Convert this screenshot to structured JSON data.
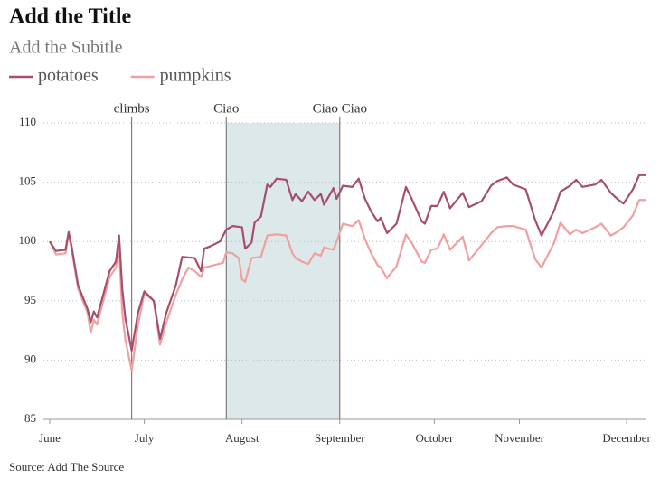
{
  "chart_data": {
    "type": "line",
    "title": "Add the Title",
    "subtitle": "Add the Subitle",
    "source": "Source: Add The Source",
    "xlim": [
      0,
      189
    ],
    "xticks": [
      {
        "value": 0,
        "label": "June"
      },
      {
        "value": 30,
        "label": "July"
      },
      {
        "value": 61,
        "label": "August"
      },
      {
        "value": 92,
        "label": "September"
      },
      {
        "value": 122,
        "label": "October"
      },
      {
        "value": 149,
        "label": "November"
      },
      {
        "value": 183,
        "label": "December"
      }
    ],
    "ylim": [
      85,
      110
    ],
    "yticks": [
      85,
      90,
      95,
      100,
      105,
      110
    ],
    "grid": true,
    "highlight": [
      56,
      92
    ],
    "annotations": [
      {
        "label": "climbs",
        "x": 26
      },
      {
        "label": "Ciao",
        "x": 56
      },
      {
        "label": "Ciao Ciao",
        "x": 92
      }
    ],
    "series": [
      {
        "name": "potatoes",
        "color": "#a4506d",
        "x": [
          0,
          2,
          5,
          6,
          7,
          9,
          12,
          13,
          14,
          15,
          19,
          21,
          22,
          23,
          24,
          26,
          28,
          30,
          33,
          35,
          37,
          40,
          42,
          46,
          48,
          49,
          51,
          54,
          56,
          58,
          61,
          62,
          64,
          65,
          67,
          69,
          70,
          72,
          75,
          77,
          78,
          80,
          82,
          84,
          86,
          87,
          90,
          91,
          93,
          96,
          98,
          100,
          102,
          104,
          105,
          107,
          110,
          113,
          115,
          118,
          119,
          121,
          123,
          125,
          127,
          131,
          133,
          137,
          140,
          142,
          145,
          147,
          151,
          154,
          156,
          160,
          162,
          165,
          167,
          169,
          173,
          175,
          178,
          180,
          182,
          185,
          187,
          189
        ],
        "values": [
          100,
          99.2,
          99.3,
          100.8,
          99.5,
          96.3,
          94.3,
          93.2,
          94.1,
          93.6,
          97.5,
          98.3,
          100.5,
          96,
          93.5,
          90.8,
          94,
          95.8,
          95,
          91.8,
          94,
          96.3,
          98.7,
          98.6,
          97.5,
          99.4,
          99.6,
          100,
          101,
          101.3,
          101.2,
          99.4,
          99.9,
          101.6,
          102.1,
          104.8,
          104.6,
          105.3,
          105.2,
          103.5,
          104,
          103.4,
          104.2,
          103.5,
          104,
          103.1,
          104.5,
          103.6,
          104.7,
          104.6,
          105.3,
          103.6,
          102.5,
          101.7,
          102,
          100.7,
          101.5,
          104.6,
          103.5,
          101.7,
          101.5,
          103,
          103,
          104.2,
          102.8,
          104.1,
          102.9,
          103.4,
          104.7,
          105.1,
          105.4,
          104.8,
          104.4,
          101.8,
          100.5,
          102.6,
          104.2,
          104.7,
          105.2,
          104.6,
          104.8,
          105.2,
          104.1,
          103.6,
          103.2,
          104.4,
          105.6,
          105.6
        ]
      },
      {
        "name": "pumpkins",
        "color": "#f0a0a0",
        "x": [
          0,
          2,
          5,
          6,
          7,
          9,
          12,
          13,
          14,
          15,
          19,
          21,
          22,
          23,
          24,
          26,
          28,
          30,
          33,
          35,
          37,
          40,
          42,
          44,
          46,
          48,
          49,
          52,
          55,
          56,
          58,
          60,
          61,
          62,
          64,
          67,
          69,
          72,
          75,
          77,
          78,
          80,
          82,
          84,
          86,
          87,
          90,
          91,
          93,
          96,
          98,
          100,
          102,
          104,
          105,
          107,
          110,
          113,
          115,
          118,
          119,
          121,
          123,
          125,
          127,
          131,
          133,
          137,
          140,
          142,
          145,
          147,
          151,
          154,
          156,
          160,
          162,
          165,
          167,
          169,
          173,
          175,
          178,
          180,
          182,
          185,
          187,
          189
        ],
        "values": [
          100,
          98.9,
          99,
          100.6,
          99.3,
          96,
          94,
          92.3,
          93.4,
          93,
          97,
          97.8,
          99.5,
          94,
          91.7,
          89.1,
          93,
          95.6,
          95,
          91.3,
          93.2,
          95.5,
          96.8,
          97.8,
          97.5,
          97,
          97.8,
          98,
          98.2,
          99.1,
          99,
          98.6,
          96.8,
          96.6,
          98.6,
          98.7,
          100.5,
          100.6,
          100.5,
          99,
          98.6,
          98.3,
          98.1,
          99,
          98.8,
          99.5,
          99.3,
          100,
          101.5,
          101.3,
          101.8,
          100.2,
          99,
          98,
          97.8,
          96.9,
          97.9,
          100.6,
          99.8,
          98.3,
          98.2,
          99.3,
          99.4,
          100.6,
          99.3,
          100.4,
          98.4,
          99.7,
          100.7,
          101.2,
          101.3,
          101.3,
          101,
          98.5,
          97.8,
          99.9,
          101.6,
          100.6,
          101,
          100.7,
          101.2,
          101.5,
          100.5,
          100.8,
          101.2,
          102.2,
          103.5,
          103.5
        ]
      }
    ]
  }
}
